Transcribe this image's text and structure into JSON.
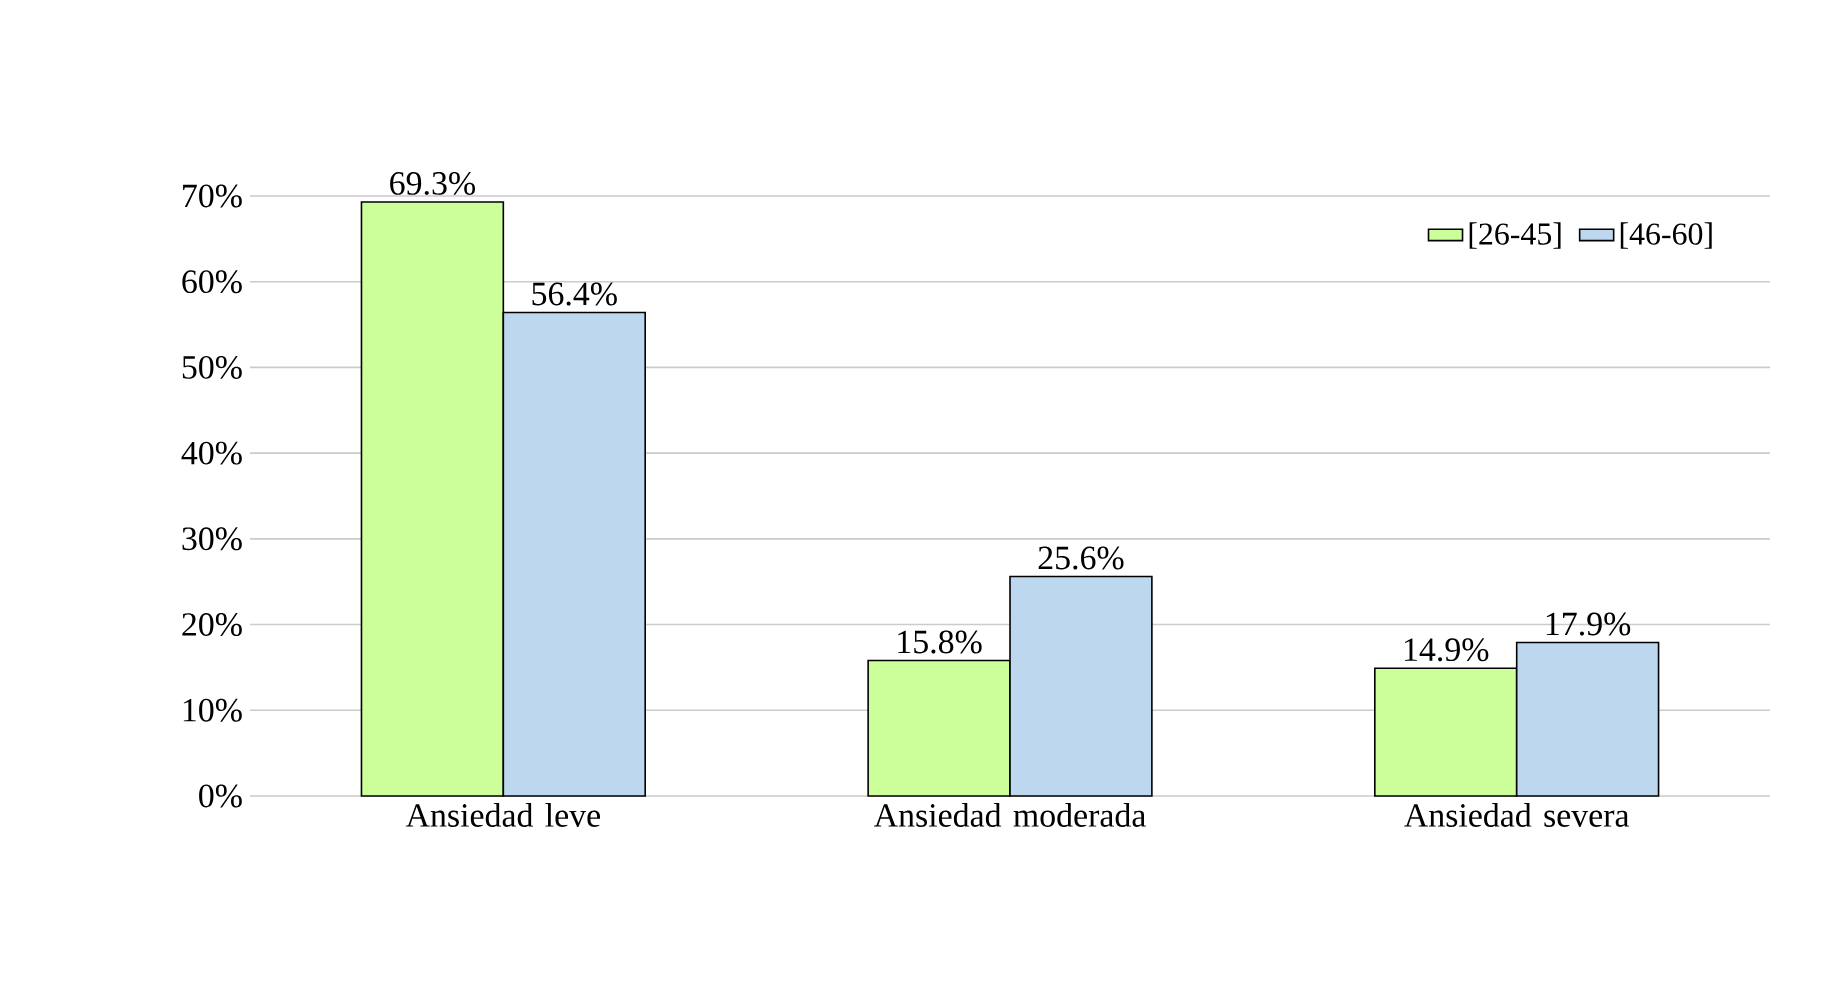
{
  "chart_data": {
    "type": "bar",
    "categories": [
      "Ansiedad leve",
      "Ansiedad moderada",
      "Ansiedad severa"
    ],
    "series": [
      {
        "name": "[26-45]",
        "color": "#ccff99",
        "values": [
          69.3,
          15.8,
          14.9
        ],
        "value_labels": [
          "69.3%",
          "15.8%",
          "14.9%"
        ]
      },
      {
        "name": "[46-60]",
        "color": "#bdd7ee",
        "values": [
          56.4,
          25.6,
          17.9
        ],
        "value_labels": [
          "56.4%",
          "25.6%",
          "17.9%"
        ]
      }
    ],
    "ylim": [
      0,
      70
    ],
    "yticks": [
      {
        "value": 0,
        "label": "0%"
      },
      {
        "value": 10,
        "label": "10%"
      },
      {
        "value": 20,
        "label": "20%"
      },
      {
        "value": 30,
        "label": "30%"
      },
      {
        "value": 40,
        "label": "40%"
      },
      {
        "value": 50,
        "label": "50%"
      },
      {
        "value": 60,
        "label": "60%"
      },
      {
        "value": 70,
        "label": "70%"
      }
    ],
    "grid": "y",
    "legend": "top right"
  }
}
